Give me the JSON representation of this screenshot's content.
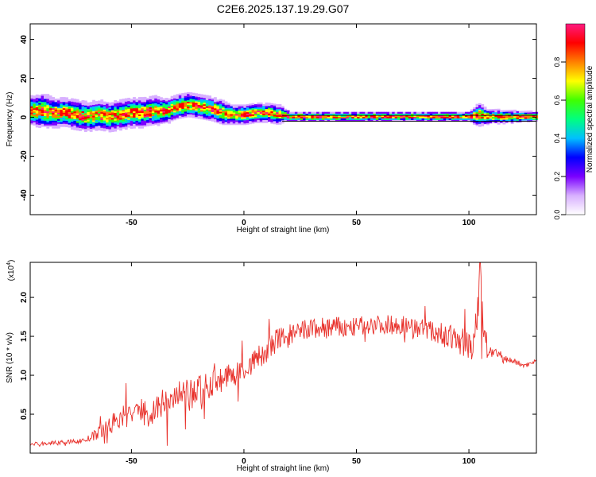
{
  "title": "C2E6.2025.137.19.29.G07",
  "chart_data": [
    {
      "type": "heatmap",
      "xlabel": "Height of straight line (km)",
      "ylabel": "Frequency (Hz)",
      "xlim": [
        -95,
        130
      ],
      "ylim": [
        -50,
        48
      ],
      "xticks": [
        -50,
        0,
        50,
        100
      ],
      "xtick_labels": [
        "-50",
        "0",
        "50",
        "100"
      ],
      "yticks": [
        -40,
        -20,
        0,
        20,
        40
      ],
      "ytick_labels": [
        "-40",
        "-20",
        "0",
        "20",
        "40"
      ],
      "colorbar": {
        "label": "Normalized spectral amplitude",
        "range": [
          0,
          1
        ],
        "ticks": [
          0,
          0.2,
          0.4,
          0.6,
          0.8
        ],
        "tick_labels": [
          "0.0",
          "0.2",
          "0.4",
          "0.6",
          "0.8"
        ],
        "colors": [
          "#ffffff",
          "#d8b0ff",
          "#7a00ff",
          "#0000ff",
          "#00c0ff",
          "#00ff80",
          "#40ff00",
          "#ffff00",
          "#ff8000",
          "#ff0000",
          "#ff1a80"
        ]
      },
      "ridge": {
        "x": [
          -95,
          -90,
          -85,
          -80,
          -75,
          -70,
          -65,
          -60,
          -55,
          -50,
          -45,
          -40,
          -35,
          -30,
          -25,
          -20,
          -15,
          -10,
          -5,
          0,
          5,
          10,
          15,
          17,
          20,
          40,
          60,
          80,
          100,
          104,
          108,
          130
        ],
        "freq": [
          3,
          3,
          2,
          2,
          1,
          0,
          1,
          0,
          1,
          2,
          2,
          3,
          3,
          5,
          6,
          5,
          4,
          2,
          1,
          1,
          2,
          2,
          1,
          1,
          0,
          0,
          0,
          0,
          0,
          1,
          0,
          0
        ],
        "spread": [
          6,
          7,
          6,
          6,
          6,
          6,
          6,
          6,
          6,
          6,
          6,
          6,
          5,
          5,
          5,
          5,
          5,
          5,
          4,
          4,
          4,
          4,
          4,
          3,
          2,
          2,
          2,
          2,
          2,
          5,
          3,
          2
        ]
      },
      "reference_lines": [
        1,
        -2
      ]
    },
    {
      "type": "line",
      "xlabel": "Height of straight line (km)",
      "ylabel": "SNR (10 * v/v)",
      "y_multiplier": "(x10",
      "y_multiplier_exp": "4",
      "xlim": [
        -95,
        130
      ],
      "ylim": [
        0,
        2.45
      ],
      "xticks": [
        -50,
        0,
        50,
        100
      ],
      "xtick_labels": [
        "-50",
        "0",
        "50",
        "100"
      ],
      "yticks": [
        0.5,
        1.0,
        1.5,
        2.0
      ],
      "ytick_labels": [
        "0.5",
        "1.0",
        "1.5",
        "2.0"
      ],
      "color": "#e8302a",
      "series": [
        {
          "x": [
            -95,
            -90,
            -85,
            -80,
            -75,
            -70,
            -65,
            -60,
            -55,
            -50,
            -45,
            -40,
            -35,
            -30,
            -25,
            -20,
            -15,
            -10,
            -5,
            0,
            5,
            10,
            15,
            20,
            25,
            30,
            35,
            40,
            45,
            50,
            55,
            60,
            65,
            70,
            75,
            80,
            85,
            90,
            95,
            100,
            103,
            105,
            107,
            110,
            115,
            120,
            125,
            130
          ],
          "values": [
            0.12,
            0.12,
            0.13,
            0.14,
            0.15,
            0.17,
            0.25,
            0.35,
            0.45,
            0.5,
            0.55,
            0.55,
            0.65,
            0.7,
            0.72,
            0.8,
            0.9,
            0.95,
            1.0,
            1.05,
            1.2,
            1.3,
            1.45,
            1.5,
            1.55,
            1.6,
            1.6,
            1.62,
            1.6,
            1.62,
            1.65,
            1.65,
            1.65,
            1.65,
            1.62,
            1.6,
            1.55,
            1.5,
            1.45,
            1.4,
            1.35,
            2.4,
            1.4,
            1.3,
            1.22,
            1.18,
            1.12,
            1.2
          ],
          "noise_amplitude": [
            0.05,
            0.05,
            0.05,
            0.05,
            0.06,
            0.08,
            0.15,
            0.25,
            0.3,
            0.35,
            0.35,
            0.35,
            0.4,
            0.45,
            0.45,
            0.45,
            0.4,
            0.35,
            0.3,
            0.3,
            0.3,
            0.35,
            0.35,
            0.3,
            0.3,
            0.3,
            0.3,
            0.3,
            0.25,
            0.25,
            0.25,
            0.25,
            0.25,
            0.25,
            0.25,
            0.25,
            0.3,
            0.3,
            0.35,
            0.4,
            0.5,
            0.9,
            0.5,
            0.15,
            0.1,
            0.08,
            0.06,
            0.06
          ]
        }
      ]
    }
  ]
}
